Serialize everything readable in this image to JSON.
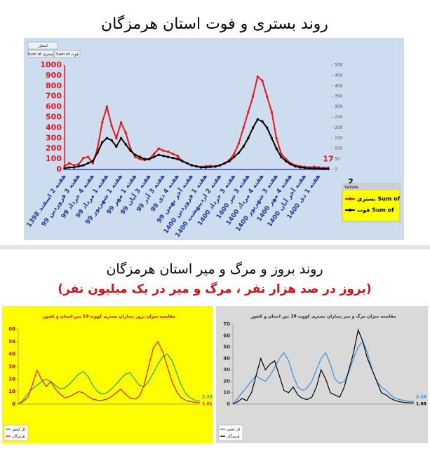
{
  "title": "روند بستری و فوت استان هرمزگان",
  "section_title": "روند بروز و مرگ و میر استان هرمزگان",
  "section_subtitle": "(بروز در صد هزار نفر ، مرگ و میر در یک میلیون نفر)",
  "filter_buttons": [
    "استان",
    "Sum of بستری",
    "Sum of فوت"
  ],
  "chart_data": [
    {
      "type": "line",
      "legend_title": "Values",
      "categories": [
        "هفته 2 اسفند 1398",
        null,
        null,
        "هفته 3 فروردین 99",
        null,
        null,
        "هفته 4 خرداد 99",
        null,
        null,
        "هفته 1 مرداد 99",
        null,
        null,
        "هفته 1 شهریور 99",
        null,
        null,
        "هفته 1 مهر 99",
        null,
        null,
        "هفته 3 آبان 99",
        null,
        null,
        "هفته 3 آذر 99",
        null,
        null,
        "هفته 4 دی 99",
        null,
        null,
        "هفته آخر بهمن 99",
        null,
        null,
        "هفته 1 فروردین 1400",
        null,
        null,
        "هفته 2 اردیبهشت 1400",
        null,
        null,
        "هفته 3 خرداد 1400",
        null,
        null,
        "هفته 3 تیر 1400",
        null,
        null,
        "هفته 4 مرداد 1400",
        null,
        null,
        "هفته 3 شهریور 1400",
        null,
        null,
        "هفته 4 مهر 1400",
        null,
        null,
        "هفته آخر آبان 1400",
        null,
        null,
        "هفته 1 دی 1400",
        null,
        null
      ],
      "series": [
        {
          "name": "بستری Sum of",
          "color": "#e8161b",
          "axis": "y",
          "values": [
            30,
            60,
            40,
            50,
            110,
            120,
            60,
            200,
            450,
            600,
            420,
            300,
            450,
            350,
            200,
            120,
            100,
            90,
            100,
            150,
            200,
            180,
            170,
            150,
            130,
            80,
            60,
            40,
            30,
            25,
            30,
            35,
            25,
            40,
            60,
            90,
            150,
            250,
            400,
            550,
            700,
            890,
            850,
            700,
            550,
            300,
            150,
            100,
            60,
            40,
            30,
            25,
            20,
            25,
            20,
            15,
            17
          ]
        },
        {
          "name": "فوت Sum of",
          "color": "#000000",
          "axis": "y2",
          "values": [
            5,
            10,
            10,
            15,
            20,
            30,
            40,
            80,
            130,
            150,
            140,
            110,
            150,
            120,
            90,
            70,
            60,
            50,
            50,
            60,
            70,
            65,
            60,
            55,
            50,
            40,
            30,
            20,
            15,
            10,
            10,
            12,
            15,
            20,
            30,
            40,
            60,
            80,
            110,
            150,
            200,
            240,
            230,
            200,
            150,
            100,
            60,
            40,
            25,
            15,
            10,
            8,
            6,
            5,
            4,
            3,
            2
          ]
        }
      ],
      "ylim": [
        0,
        1000
      ],
      "yticks": [
        0,
        100,
        200,
        300,
        400,
        500,
        600,
        700,
        800,
        900,
        1000
      ],
      "y2lim": [
        0,
        500
      ],
      "y2ticks": [
        0,
        50,
        100,
        150,
        200,
        250,
        300,
        350,
        400,
        450,
        500
      ],
      "markers": true,
      "end_labels": true
    },
    {
      "type": "line",
      "title": "مقایسه میزان بروز بیماران بستری کووید-19 بین استان و کشور",
      "series": [
        {
          "name": "کل کشور",
          "color": "#2e9e5a",
          "axis": "y",
          "values": [
            0,
            3,
            8,
            12,
            15,
            18,
            20,
            18,
            15,
            12,
            13,
            16,
            20,
            24,
            26,
            22,
            15,
            10,
            8,
            9,
            12,
            16,
            20,
            24,
            25,
            20,
            15,
            14,
            18,
            25,
            32,
            38,
            40,
            35,
            25,
            15,
            8,
            5,
            3,
            2.33
          ]
        },
        {
          "name": "هرمزگان",
          "color": "#e8161b",
          "axis": "y",
          "values": [
            0,
            2,
            5,
            15,
            27,
            20,
            14,
            18,
            12,
            8,
            5,
            6,
            8,
            10,
            9,
            6,
            4,
            3,
            3,
            4,
            6,
            9,
            12,
            8,
            5,
            4,
            6,
            15,
            30,
            45,
            50,
            42,
            30,
            18,
            10,
            5,
            3,
            2,
            1.5,
            1.01
          ]
        }
      ],
      "ylim": [
        0,
        60
      ],
      "yticks": [
        0,
        10,
        20,
        30,
        40,
        50,
        60
      ],
      "end_labels": true
    },
    {
      "type": "line",
      "title": "مقایسه میزان مرگ و میر بیماران بستری کووید-19 بین استان و کشور",
      "series": [
        {
          "name": "کل کشور",
          "color": "#3a8fd6",
          "axis": "y",
          "values": [
            0,
            5,
            10,
            15,
            20,
            25,
            22,
            20,
            25,
            32,
            40,
            45,
            38,
            25,
            15,
            12,
            14,
            20,
            30,
            40,
            45,
            35,
            22,
            18,
            20,
            28,
            40,
            50,
            55,
            45,
            30,
            20,
            15,
            12,
            8,
            5,
            4,
            3,
            2.5,
            2.34
          ]
        },
        {
          "name": "هرمزگان",
          "color": "#000000",
          "axis": "y",
          "values": [
            0,
            2,
            5,
            3,
            10,
            25,
            40,
            30,
            35,
            38,
            25,
            12,
            10,
            15,
            8,
            5,
            4,
            6,
            15,
            30,
            22,
            10,
            8,
            6,
            15,
            30,
            45,
            65,
            55,
            40,
            30,
            20,
            10,
            8,
            5,
            3,
            2,
            1.5,
            1.2,
            1.08
          ]
        }
      ],
      "ylim": [
        0,
        70
      ],
      "yticks": [
        0,
        10,
        20,
        30,
        40,
        50,
        60,
        70
      ],
      "end_labels": true
    }
  ]
}
